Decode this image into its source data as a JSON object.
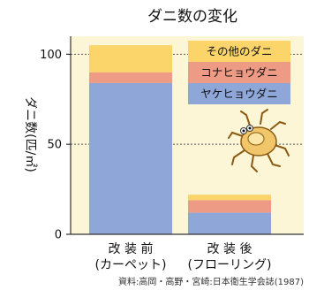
{
  "chart_data": {
    "type": "bar",
    "stacked": true,
    "title": "ダニ数の変化",
    "ylabel": "ダニ数(匹/㎡)",
    "ylim": [
      0,
      110
    ],
    "yticks": [
      0,
      50,
      100
    ],
    "grid": "dotted lines at 50 and 100",
    "legend_position": "top-right",
    "categories": [
      {
        "line1": "改 装 前",
        "line2": "(カーペット)"
      },
      {
        "line1": "改 装 後",
        "line2": "(フローリング)"
      }
    ],
    "series": [
      {
        "name": "ヤケヒョウダニ",
        "color": "#8fa6d8",
        "values": [
          84,
          12
        ]
      },
      {
        "name": "コナヒョウダニ",
        "color": "#ee9b86",
        "values": [
          6,
          7
        ]
      },
      {
        "name": "その他のダニ",
        "color": "#fbd46a",
        "values": [
          15,
          3
        ]
      }
    ],
    "source_note": "資料:高岡・高野・宮崎:日本衛生学会誌(1987)"
  },
  "colors": {
    "plot_background": "#fdf6d6",
    "axis": "#333333",
    "legend_background": "#fdf6d6"
  }
}
